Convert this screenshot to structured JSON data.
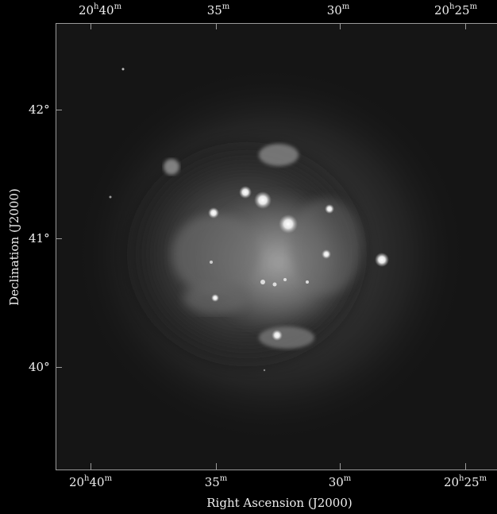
{
  "figure": {
    "x_axis_title": "Right Ascension (J2000)",
    "y_axis_title": "Declination (J2000)",
    "ra_ticks": [
      {
        "h": "20",
        "m": "40",
        "label": "20h40m"
      },
      {
        "h": "",
        "m": "35",
        "label": "35m"
      },
      {
        "h": "",
        "m": "30",
        "label": "30m"
      },
      {
        "h": "20",
        "m": "25",
        "label": "20h25m"
      }
    ],
    "dec_ticks": [
      "42°",
      "41°",
      "40°"
    ]
  }
}
